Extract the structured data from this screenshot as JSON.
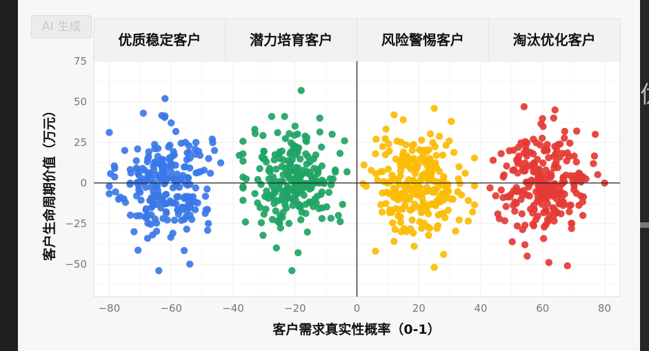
{
  "watermark": "AI 生成",
  "right_edge_glyph": "优",
  "chart_data": {
    "type": "scatter",
    "title": "",
    "xlabel": "客户需求真实性概率（0-1）",
    "ylabel": "客户生命周期价值（万元）",
    "xlim": [
      -85,
      85
    ],
    "ylim": [
      -70,
      75
    ],
    "xticks": [
      -80,
      -60,
      -40,
      -20,
      0,
      20,
      40,
      60,
      80
    ],
    "yticks": [
      75,
      50,
      25,
      0,
      -25,
      -50
    ],
    "grid": true,
    "reference_lines": {
      "x": 0,
      "y": 0
    },
    "panel_titles": [
      "优质稳定客户",
      "潜力培育客户",
      "风险警惕客户",
      "淘汰优化客户"
    ],
    "series": [
      {
        "color": "#3b78e7",
        "center": [
          -62,
          0
        ],
        "spread": [
          7.5,
          16
        ],
        "count": 230,
        "points": [
          [
            -62,
            52
          ],
          [
            -69,
            43
          ],
          [
            -52,
            25
          ],
          [
            -46,
            20
          ],
          [
            -75,
            20
          ],
          [
            -66,
            -32
          ],
          [
            -64,
            -54
          ],
          [
            -54,
            -50
          ],
          [
            -48,
            -25
          ],
          [
            -77,
            -10
          ],
          [
            -72,
            -30
          ],
          [
            -60,
            37
          ]
        ]
      },
      {
        "color": "#1fa464",
        "center": [
          -20,
          2
        ],
        "spread": [
          7,
          15
        ],
        "count": 230,
        "points": [
          [
            -18,
            57
          ],
          [
            -12,
            40
          ],
          [
            -33,
            33
          ],
          [
            -8,
            30
          ],
          [
            -4,
            26
          ],
          [
            -38,
            17
          ],
          [
            -36,
            -24
          ],
          [
            -26,
            -40
          ],
          [
            -21,
            -54
          ],
          [
            -19,
            -43
          ],
          [
            -6,
            -20
          ],
          [
            -7,
            8
          ]
        ]
      },
      {
        "color": "#fbbc04",
        "center": [
          20,
          0
        ],
        "spread": [
          7.5,
          15
        ],
        "count": 230,
        "points": [
          [
            12,
            42
          ],
          [
            25,
            46
          ],
          [
            35,
            6
          ],
          [
            6,
            18
          ],
          [
            3,
            -2
          ],
          [
            6,
            -42
          ],
          [
            12,
            -36
          ],
          [
            25,
            -52
          ],
          [
            28,
            -44
          ],
          [
            31,
            -10
          ],
          [
            33,
            10
          ],
          [
            16,
            -30
          ]
        ]
      },
      {
        "color": "#e53935",
        "center": [
          61,
          1
        ],
        "spread": [
          7,
          15
        ],
        "count": 230,
        "points": [
          [
            54,
            47
          ],
          [
            64,
            45
          ],
          [
            71,
            32
          ],
          [
            77,
            30
          ],
          [
            44,
            14
          ],
          [
            43,
            -3
          ],
          [
            46,
            -22
          ],
          [
            55,
            -45
          ],
          [
            62,
            -49
          ],
          [
            68,
            -51
          ],
          [
            73,
            -20
          ],
          [
            80,
            0
          ]
        ]
      }
    ]
  }
}
